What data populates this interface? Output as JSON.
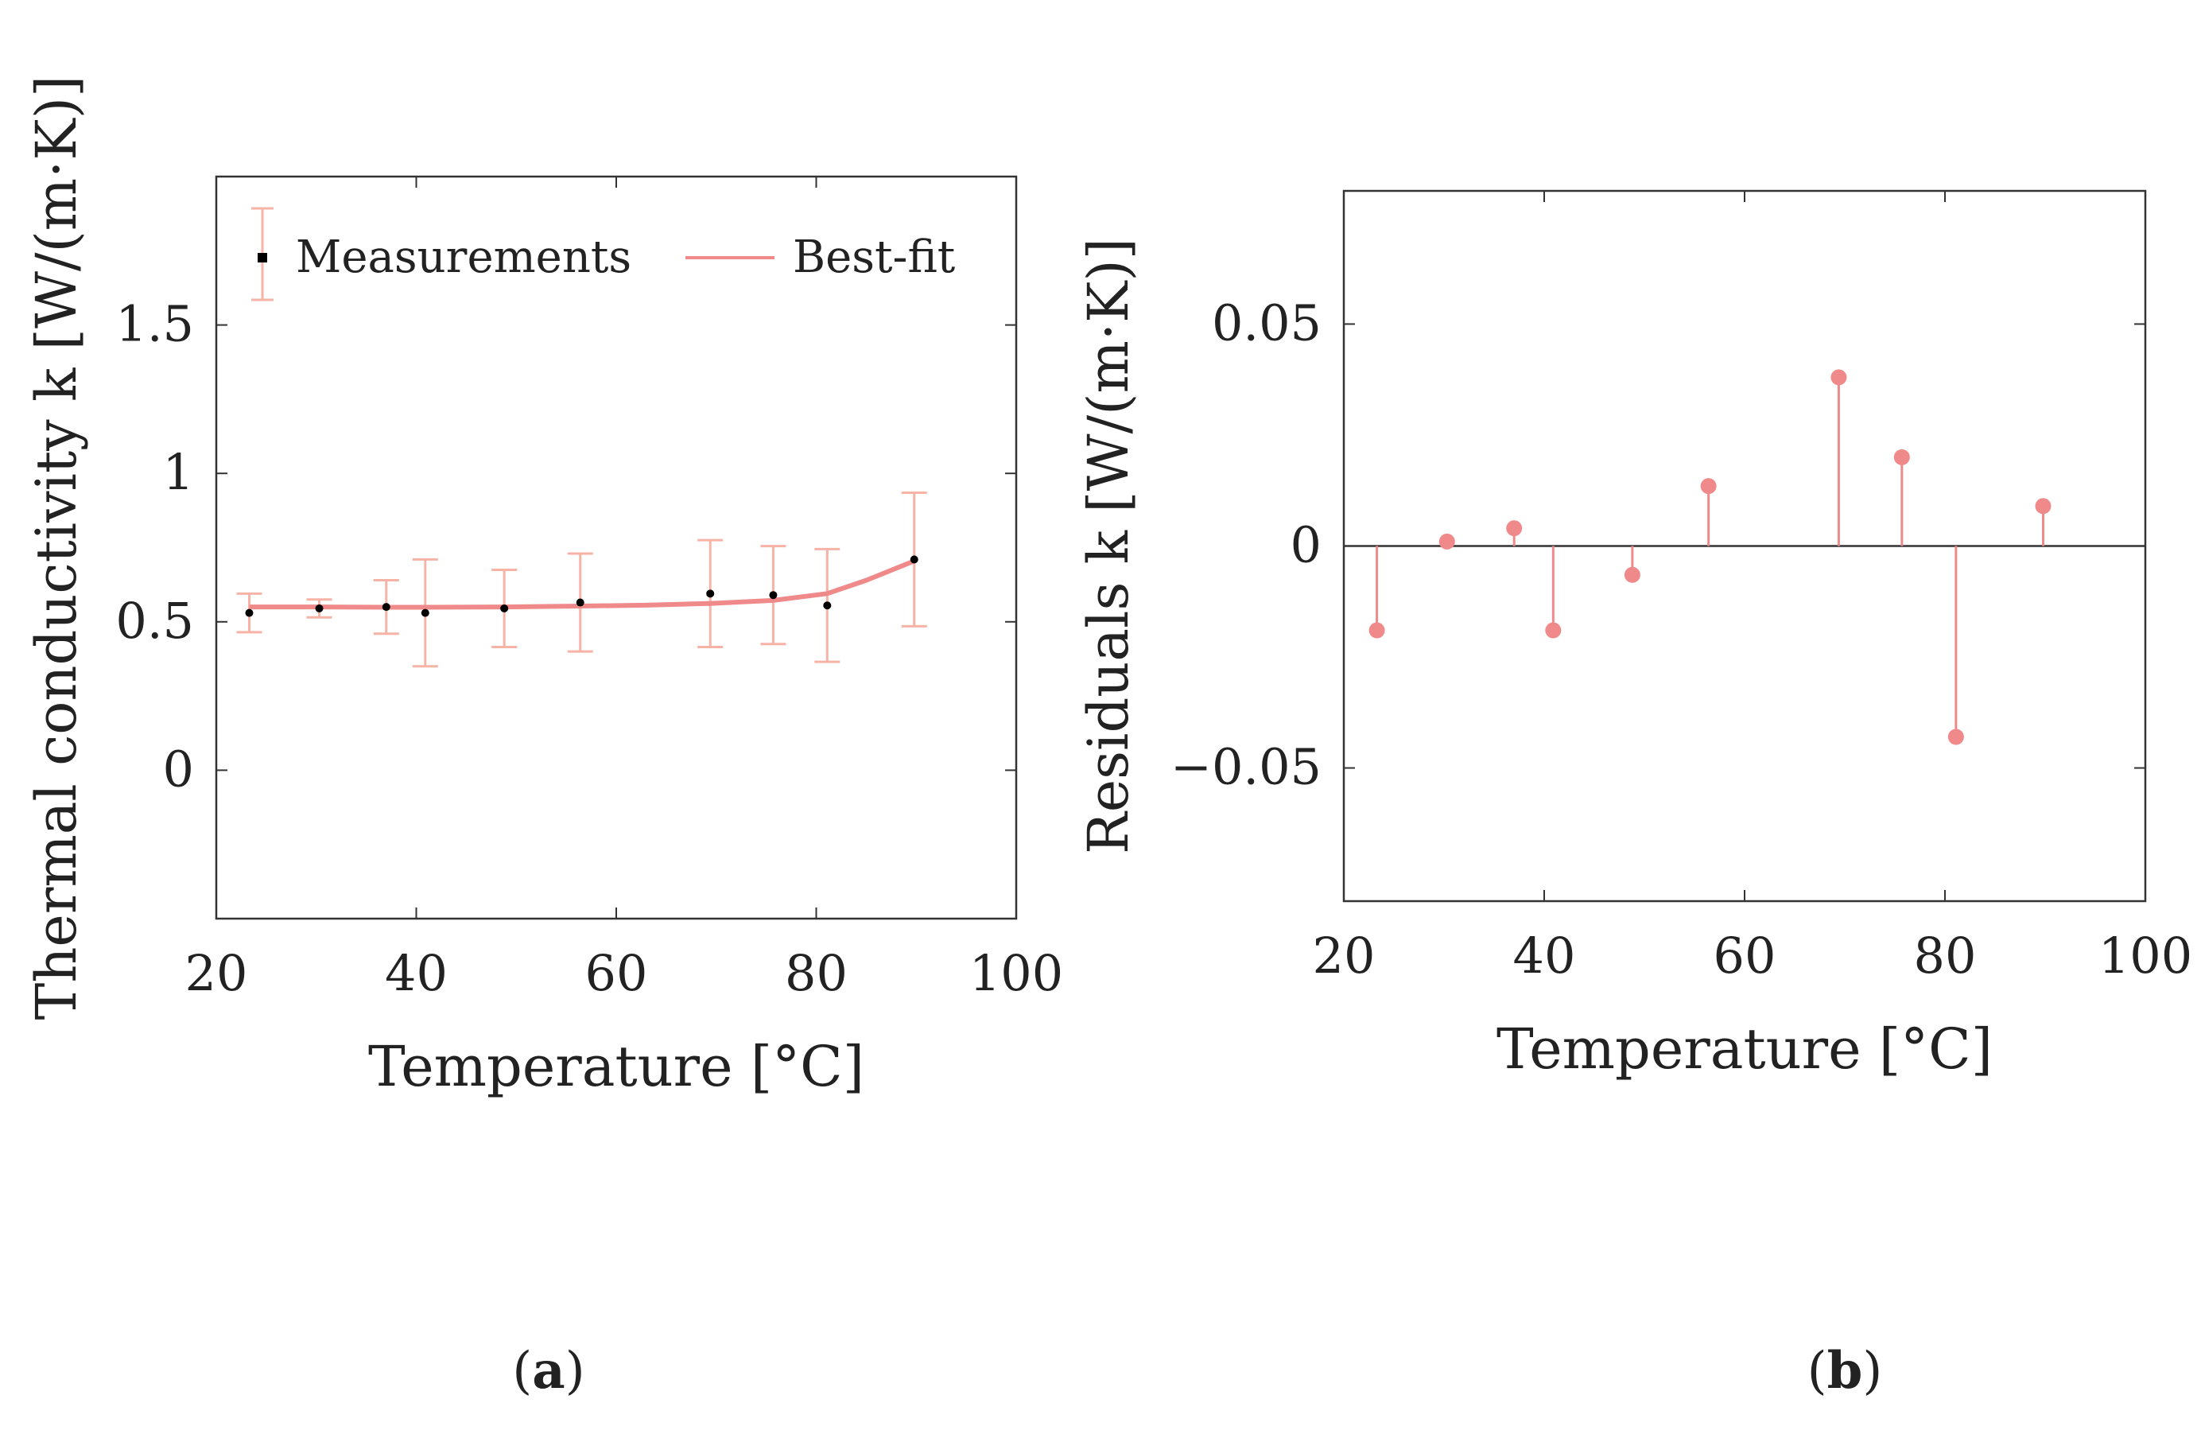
{
  "colors": {
    "fit_line": "#f08a8a",
    "error_bar": "#f6b3a6",
    "marker": "#000000",
    "stem": "#f08a8a",
    "axis": "#333333"
  },
  "panel_labels": [
    "a",
    "b"
  ],
  "chart_data": [
    {
      "type": "scatter",
      "panel": "a",
      "title": "",
      "xlabel": "Temperature [°C]",
      "ylabel": "Thermal conductivity k [W/(m·K)]",
      "xlim": [
        20,
        100
      ],
      "ylim": [
        -0.5,
        2.0
      ],
      "xticks": [
        20,
        40,
        60,
        80,
        100
      ],
      "yticks": [
        0,
        0.5,
        1,
        1.5
      ],
      "ytick_labels": [
        "0",
        "0.5",
        "1",
        "1.5"
      ],
      "grid": false,
      "legend": {
        "placement": "top-left",
        "entries": [
          "Measurements",
          "Best-fit"
        ]
      },
      "series": [
        {
          "name": "Measurements",
          "kind": "errorbar",
          "x": [
            23.3,
            30.3,
            37.0,
            40.9,
            48.8,
            56.4,
            69.4,
            75.7,
            81.1,
            89.8
          ],
          "y": [
            0.53,
            0.545,
            0.55,
            0.53,
            0.545,
            0.565,
            0.595,
            0.59,
            0.555,
            0.71
          ],
          "err": [
            0.065,
            0.03,
            0.09,
            0.18,
            0.13,
            0.165,
            0.18,
            0.165,
            0.19,
            0.225
          ]
        },
        {
          "name": "Best-fit",
          "kind": "line",
          "x": [
            23.3,
            30.3,
            37.0,
            40.9,
            48.8,
            56.4,
            63.0,
            69.4,
            75.7,
            81.1,
            85.0,
            89.8
          ],
          "y": [
            0.55,
            0.55,
            0.549,
            0.549,
            0.55,
            0.553,
            0.556,
            0.562,
            0.572,
            0.595,
            0.64,
            0.705
          ]
        }
      ]
    },
    {
      "type": "stem",
      "panel": "b",
      "title": "",
      "xlabel": "Temperature [°C]",
      "ylabel": "Residuals k [W/(m·K)]",
      "xlim": [
        20,
        100
      ],
      "ylim": [
        -0.08,
        0.08
      ],
      "xticks": [
        20,
        40,
        60,
        80,
        100
      ],
      "yticks": [
        -0.05,
        0,
        0.05
      ],
      "ytick_labels": [
        "−0.05",
        "0",
        "0.05"
      ],
      "grid": false,
      "baseline": 0,
      "series": [
        {
          "name": "Residuals",
          "x": [
            23.3,
            30.3,
            37.0,
            40.9,
            48.8,
            56.4,
            69.4,
            75.7,
            81.1,
            89.8
          ],
          "y": [
            -0.019,
            0.001,
            0.004,
            -0.019,
            -0.0065,
            0.0135,
            0.038,
            0.02,
            -0.043,
            0.009
          ]
        }
      ]
    }
  ]
}
